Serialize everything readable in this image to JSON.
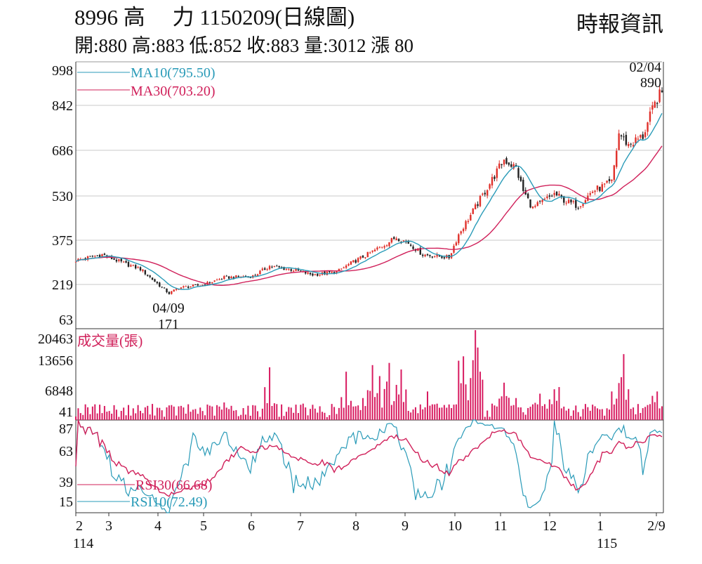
{
  "header": {
    "title": "8996  高　 力 1150209(日線圖)",
    "ohlc": "開:880 高:883 低:852 收:883 量:3012 漲 80",
    "source": "時報資訊"
  },
  "colors": {
    "up": "#e0302a",
    "down": "#222222",
    "ma10": "#2a9bb8",
    "ma30": "#d0205a",
    "volume": "#d81b60",
    "grid": "#c8c8c8"
  },
  "chart_data": [
    {
      "type": "candlestick",
      "title": "8996 高力 1150209(日線圖)",
      "y_ticks": [
        "998",
        "842",
        "686",
        "530",
        "375",
        "219",
        "63"
      ],
      "ylim": [
        63,
        998
      ],
      "legend": [
        {
          "name": "MA10",
          "label": "MA10(795.50)"
        },
        {
          "name": "MA30",
          "label": "MA30(703.20)"
        }
      ],
      "annotations": [
        {
          "date": "04/09",
          "value": "171",
          "kind": "low"
        },
        {
          "date": "02/04",
          "value": "890",
          "kind": "high"
        }
      ],
      "trading_days": 246,
      "close_anchors": [
        [
          0,
          300
        ],
        [
          11,
          320
        ],
        [
          20,
          290
        ],
        [
          27,
          270
        ],
        [
          34,
          220
        ],
        [
          39,
          185
        ],
        [
          43,
          205
        ],
        [
          53,
          215
        ],
        [
          62,
          240
        ],
        [
          74,
          245
        ],
        [
          81,
          280
        ],
        [
          92,
          265
        ],
        [
          99,
          250
        ],
        [
          109,
          260
        ],
        [
          115,
          290
        ],
        [
          124,
          330
        ],
        [
          134,
          380
        ],
        [
          139,
          360
        ],
        [
          145,
          320
        ],
        [
          156,
          310
        ],
        [
          160,
          390
        ],
        [
          166,
          470
        ],
        [
          174,
          580
        ],
        [
          179,
          650
        ],
        [
          184,
          620
        ],
        [
          187,
          540
        ],
        [
          191,
          480
        ],
        [
          200,
          530
        ],
        [
          206,
          500
        ],
        [
          210,
          490
        ],
        [
          216,
          540
        ],
        [
          224,
          570
        ],
        [
          227,
          740
        ],
        [
          231,
          700
        ],
        [
          237,
          730
        ],
        [
          241,
          820
        ],
        [
          243,
          860
        ],
        [
          245,
          883
        ]
      ]
    },
    {
      "type": "bar",
      "title": "成交量(張)",
      "y_ticks": [
        "20463",
        "13656",
        "6848",
        "41"
      ],
      "ylim": [
        0,
        20463
      ],
      "baseline": 2200,
      "spikes": [
        [
          10,
          3500
        ],
        [
          34,
          2800
        ],
        [
          62,
          4000
        ],
        [
          81,
          12000
        ],
        [
          92,
          3500
        ],
        [
          113,
          11000
        ],
        [
          120,
          5000
        ],
        [
          124,
          12500
        ],
        [
          127,
          10000
        ],
        [
          131,
          13000
        ],
        [
          134,
          8000
        ],
        [
          136,
          11500
        ],
        [
          147,
          6500
        ],
        [
          160,
          13500
        ],
        [
          162,
          14500
        ],
        [
          167,
          20463
        ],
        [
          168,
          16500
        ],
        [
          179,
          8500
        ],
        [
          184,
          5000
        ],
        [
          194,
          6000
        ],
        [
          200,
          7000
        ],
        [
          202,
          7500
        ],
        [
          216,
          3500
        ],
        [
          224,
          6500
        ],
        [
          227,
          8000
        ],
        [
          229,
          15000
        ],
        [
          231,
          7000
        ],
        [
          241,
          5500
        ],
        [
          243,
          6500
        ]
      ]
    },
    {
      "type": "line",
      "title": "RSI",
      "y_ticks": [
        "87",
        "63",
        "39",
        "15"
      ],
      "ylim": [
        0,
        100
      ],
      "legend": [
        {
          "name": "RSI30",
          "label": "RSI30(66.68)"
        },
        {
          "name": "RSI10",
          "label": "RSI10(72.49)"
        }
      ]
    }
  ],
  "x_axis": {
    "months": [
      "2",
      "3",
      "4",
      "5",
      "6",
      "7",
      "8",
      "9",
      "10",
      "11",
      "12",
      "1",
      "2/9"
    ],
    "years": [
      "114",
      "115"
    ]
  }
}
